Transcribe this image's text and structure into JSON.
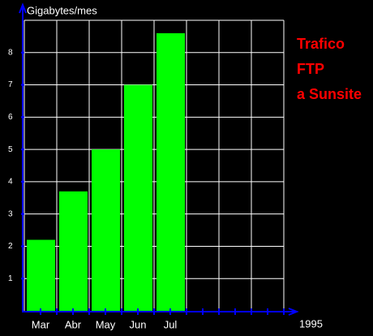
{
  "chart_data": {
    "type": "bar",
    "title_lines": [
      "Trafico",
      "FTP",
      "a Sunsite"
    ],
    "y_label": "Gigabytes/mes",
    "x_note": "1995",
    "categories": [
      "Mar",
      "Abr",
      "May",
      "Jun",
      "Jul",
      null,
      null,
      null
    ],
    "values": [
      2.2,
      3.7,
      5.0,
      7.0,
      8.6,
      null,
      null,
      null
    ],
    "color": "#00ff00",
    "title_color": "#ff0000",
    "axis_color": "#0000ff",
    "ylim": [
      0,
      9
    ],
    "yticks": [
      1,
      2,
      3,
      4,
      5,
      6,
      7,
      8
    ],
    "grid": true
  }
}
